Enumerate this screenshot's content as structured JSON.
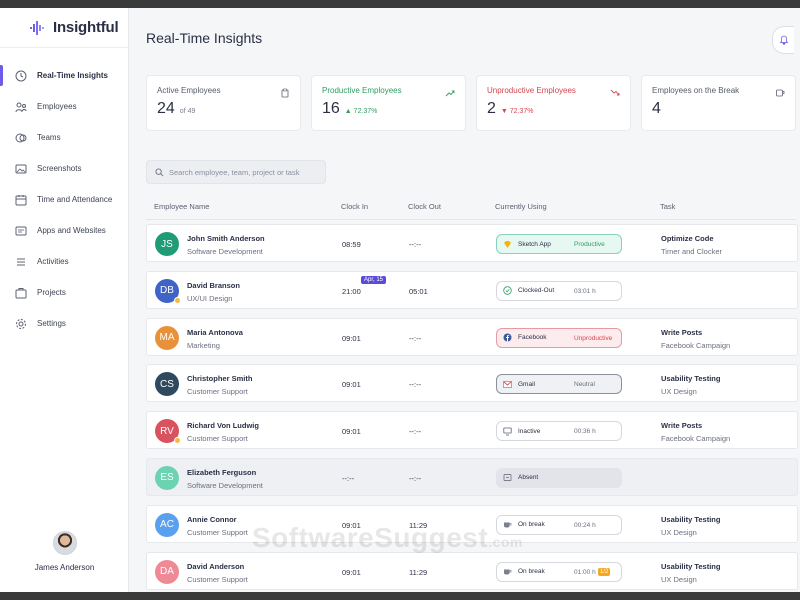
{
  "app": {
    "name": "Insightful"
  },
  "sidebar": {
    "items": [
      {
        "label": "Real-Time Insights",
        "icon": "realtime-icon",
        "active": true
      },
      {
        "label": "Employees",
        "icon": "employees-icon",
        "active": false
      },
      {
        "label": "Teams",
        "icon": "teams-icon",
        "active": false
      },
      {
        "label": "Screenshots",
        "icon": "screenshots-icon",
        "active": false
      },
      {
        "label": "Time and Attendance",
        "icon": "calendar-icon",
        "active": false
      },
      {
        "label": "Apps and Websites",
        "icon": "apps-icon",
        "active": false
      },
      {
        "label": "Activities",
        "icon": "activities-icon",
        "active": false
      },
      {
        "label": "Projects",
        "icon": "projects-icon",
        "active": false
      },
      {
        "label": "Settings",
        "icon": "settings-icon",
        "active": false
      }
    ],
    "user": {
      "name": "James Anderson"
    }
  },
  "header": {
    "title": "Real-Time Insights"
  },
  "stats": [
    {
      "label": "Active Employees",
      "value": "24",
      "sub": "of 49",
      "tone": "neutral",
      "icon": "clipboard-icon"
    },
    {
      "label": "Productive Employees",
      "value": "16",
      "sub": "▲ 72.37%",
      "tone": "green",
      "icon": "trend-up-icon"
    },
    {
      "label": "Unproductive Employees",
      "value": "2",
      "sub": "▼ 72.37%",
      "tone": "red",
      "icon": "trend-down-icon"
    },
    {
      "label": "Employees on the Break",
      "value": "4",
      "sub": "",
      "tone": "neutral",
      "icon": "coffee-icon"
    }
  ],
  "search": {
    "placeholder": "Search employee, team, project or task"
  },
  "table": {
    "columns": [
      "Employee Name",
      "Clock In",
      "Clock Out",
      "Currently Using",
      "Task"
    ],
    "rows": [
      {
        "initials": "JS",
        "color": "#1f9c76",
        "name": "John Smith Anderson",
        "dept": "Software Development",
        "clock_in": "08:59",
        "clock_out": "--:--",
        "using_app": "Sketch App",
        "using_icon": "sketch-icon",
        "using_status": "Productive",
        "using_kind": "productive",
        "task": "Optimize Code",
        "task_sub": "Timer and Clocker"
      },
      {
        "initials": "DB",
        "color": "#3f64c8",
        "name": "David Branson",
        "dept": "UX/UI Design",
        "clock_in": "21:00",
        "clock_in_badge": "Apr, 15",
        "clock_out": "05:01",
        "using_app": "Clocked-Out",
        "using_icon": "check-circle-icon",
        "using_time": "03:01 h",
        "using_kind": "plain",
        "task": "",
        "task_sub": "",
        "dot": true
      },
      {
        "initials": "MA",
        "color": "#e8913a",
        "name": "Maria Antonova",
        "dept": "Marketing",
        "clock_in": "09:01",
        "clock_out": "--:--",
        "using_app": "Facebook",
        "using_icon": "facebook-icon",
        "using_status": "Unproductive",
        "using_kind": "unproductive",
        "task": "Write Posts",
        "task_sub": "Facebook Campaign"
      },
      {
        "initials": "CS",
        "color": "#2f4a5e",
        "name": "Christopher Smith",
        "dept": "Customer Support",
        "clock_in": "09:01",
        "clock_out": "--:--",
        "using_app": "Gmail",
        "using_icon": "gmail-icon",
        "using_status": "Neutral",
        "using_kind": "neutral",
        "task": "Usability Testing",
        "task_sub": "UX Design"
      },
      {
        "initials": "RV",
        "color": "#d9535f",
        "name": "Richard Von Ludwig",
        "dept": "Customer Support",
        "clock_in": "09:01",
        "clock_out": "--:--",
        "using_app": "Inactive",
        "using_icon": "monitor-icon",
        "using_time": "00:36 h",
        "using_kind": "plain",
        "task": "Write Posts",
        "task_sub": "Facebook Campaign",
        "dot": true
      },
      {
        "initials": "ES",
        "color": "#6cd3b1",
        "name": "Elizabeth Ferguson",
        "dept": "Software Development",
        "clock_in": "--:--",
        "clock_out": "--:--",
        "using_app": "Absent",
        "using_icon": "absent-icon",
        "using_kind": "absent",
        "task": "",
        "task_sub": "",
        "grey": true
      },
      {
        "initials": "AC",
        "color": "#5aa0f0",
        "name": "Annie Connor",
        "dept": "Customer Support",
        "clock_in": "09:01",
        "clock_out": "11:29",
        "using_app": "On break",
        "using_icon": "coffee-icon",
        "using_time": "00:24 h",
        "using_kind": "plain",
        "task": "Usability Testing",
        "task_sub": "UX Design"
      },
      {
        "initials": "DA",
        "color": "#ee8a95",
        "name": "David Anderson",
        "dept": "Customer Support",
        "clock_in": "09:01",
        "clock_out": "11:29",
        "using_app": "On break",
        "using_icon": "coffee-icon",
        "using_time": "01:00 h",
        "using_flag": "1/2",
        "using_kind": "plain",
        "task": "Usability Testing",
        "task_sub": "UX Design"
      }
    ]
  },
  "watermark": {
    "main": "SoftwareSuggest",
    "suffix": ".com"
  },
  "colors": {
    "accent": "#6c5ce7",
    "green": "#2e9e61",
    "red": "#d6454f"
  }
}
